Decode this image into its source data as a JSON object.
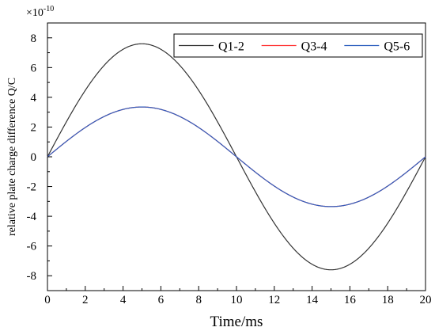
{
  "chart_data": {
    "type": "line",
    "title": "",
    "xlabel": "Time/ms",
    "ylabel": "relative plate charge difference Q/C",
    "y_multiplier_label": "×10",
    "y_multiplier_exponent": "-10",
    "xlim": [
      0,
      20
    ],
    "ylim": [
      -9,
      9
    ],
    "x_ticks": [
      0,
      2,
      4,
      6,
      8,
      10,
      12,
      14,
      16,
      18,
      20
    ],
    "y_ticks": [
      -8,
      -6,
      -4,
      -2,
      0,
      2,
      4,
      6,
      8
    ],
    "grid": false,
    "legend_position": "top-right",
    "series": [
      {
        "name": "Q1-2",
        "color": "#333333",
        "amplitude": 7.6,
        "period_ms": 20
      },
      {
        "name": "Q3-4",
        "color": "#ff3333",
        "amplitude": 3.35,
        "period_ms": 20
      },
      {
        "name": "Q5-6",
        "color": "#2e5fbf",
        "amplitude": 3.35,
        "period_ms": 20
      }
    ]
  }
}
